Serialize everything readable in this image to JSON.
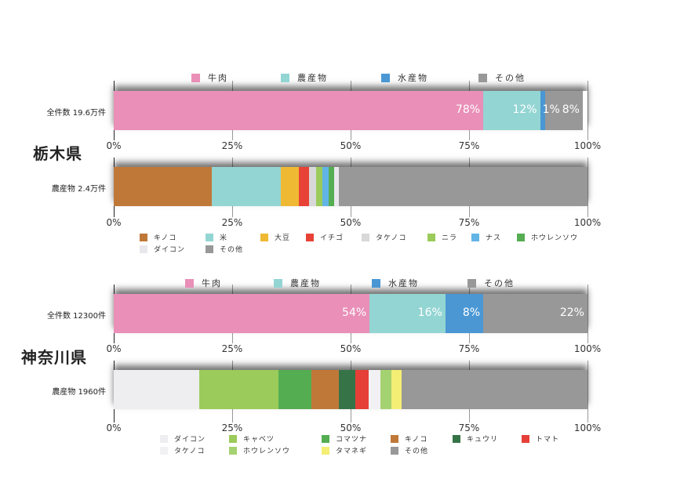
{
  "chart_data": [
    {
      "type": "bar",
      "stacked": true,
      "orientation": "horizontal",
      "title": "栃木県",
      "category": "全件数 19.6万件",
      "legend": "top",
      "xlim": [
        0,
        100
      ],
      "ticks": [
        "0%",
        "25%",
        "50%",
        "75%",
        "100%"
      ],
      "series": [
        {
          "name": "牛肉",
          "value": 78,
          "label": "78%",
          "color": "#e98fb8"
        },
        {
          "name": "農産物",
          "value": 12,
          "label": "12%",
          "color": "#93d5d3"
        },
        {
          "name": "水産物",
          "value": 1,
          "label": "1%",
          "color": "#4a97d4"
        },
        {
          "name": "その他",
          "value": 8,
          "label": "8%",
          "color": "#989898"
        }
      ]
    },
    {
      "type": "bar",
      "stacked": true,
      "orientation": "horizontal",
      "title": "栃木県",
      "category": "農産物 2.4万件",
      "legend": "bottom",
      "xlim": [
        0,
        100
      ],
      "ticks": [
        "0%",
        "25%",
        "50%",
        "75%",
        "100%"
      ],
      "series": [
        {
          "name": "キノコ",
          "value": 20.7,
          "color": "#c07839"
        },
        {
          "name": "米",
          "value": 14.5,
          "color": "#93d5d3"
        },
        {
          "name": "大豆",
          "value": 3.9,
          "color": "#efb934"
        },
        {
          "name": "イチゴ",
          "value": 2.2,
          "color": "#e84237"
        },
        {
          "name": "タケノコ",
          "value": 1.5,
          "color": "#d8d8d8"
        },
        {
          "name": "ニラ",
          "value": 1.3,
          "color": "#9bcb5a"
        },
        {
          "name": "ナス",
          "value": 1.3,
          "color": "#62b4e6"
        },
        {
          "name": "ホウレンソウ",
          "value": 1.2,
          "color": "#55ad52"
        },
        {
          "name": "ダイコン",
          "value": 1.0,
          "color": "#e8e8ec"
        },
        {
          "name": "その他",
          "value": 52.4,
          "color": "#989898"
        }
      ]
    },
    {
      "type": "bar",
      "stacked": true,
      "orientation": "horizontal",
      "title": "神奈川県",
      "category": "全件数 12300件",
      "legend": "top",
      "xlim": [
        0,
        100
      ],
      "ticks": [
        "0%",
        "25%",
        "50%",
        "75%",
        "100%"
      ],
      "series": [
        {
          "name": "牛肉",
          "value": 54,
          "label": "54%",
          "color": "#e98fb8"
        },
        {
          "name": "農産物",
          "value": 16,
          "label": "16%",
          "color": "#93d5d3"
        },
        {
          "name": "水産物",
          "value": 8,
          "label": "8%",
          "color": "#4a97d4"
        },
        {
          "name": "その他",
          "value": 22,
          "label": "22%",
          "color": "#989898"
        }
      ]
    },
    {
      "type": "bar",
      "stacked": true,
      "orientation": "horizontal",
      "title": "神奈川県",
      "category": "農産物 1960件",
      "legend": "bottom",
      "xlim": [
        0,
        100
      ],
      "ticks": [
        "0%",
        "25%",
        "50%",
        "75%",
        "100%"
      ],
      "series": [
        {
          "name": "ダイコン",
          "value": 18.0,
          "color": "#eeeef1"
        },
        {
          "name": "キャベツ",
          "value": 16.8,
          "color": "#9bcb5a"
        },
        {
          "name": "コマツナ",
          "value": 6.9,
          "color": "#55ad52"
        },
        {
          "name": "キノコ",
          "value": 5.8,
          "color": "#c07839"
        },
        {
          "name": "キュウリ",
          "value": 3.5,
          "color": "#367448"
        },
        {
          "name": "トマト",
          "value": 2.8,
          "color": "#e53f37"
        },
        {
          "name": "タケノコ",
          "value": 2.5,
          "color": "#f1f0f3"
        },
        {
          "name": "ホウレンソウ",
          "value": 2.3,
          "color": "#a5d271"
        },
        {
          "name": "タマネギ",
          "value": 2.2,
          "color": "#f4ee74"
        },
        {
          "name": "その他",
          "value": 39.2,
          "color": "#989898"
        }
      ]
    }
  ],
  "titles": {
    "tochigi": "栃木県",
    "kanagawa": "神奈川県"
  }
}
